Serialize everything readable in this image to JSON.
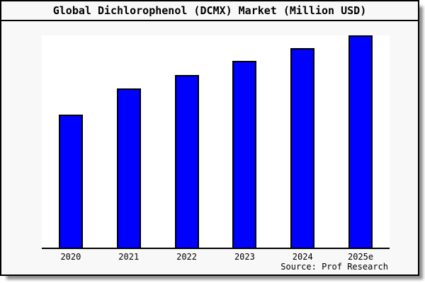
{
  "chart_data": {
    "type": "bar",
    "title": "Global Dichlorophenol (DCMX) Market (Million USD)",
    "categories": [
      "2020",
      "2021",
      "2022",
      "2023",
      "2024",
      "2025e"
    ],
    "values": [
      188,
      225,
      244,
      264,
      282,
      300
    ],
    "value_note": "no y-axis labels or gridlines shown; values are relative bar heights estimated in pixels",
    "xlabel": "",
    "ylabel": "",
    "ylim": [
      0,
      300
    ],
    "grid": false,
    "y_axis_visible": false,
    "x_axis_visible": true,
    "legend": null,
    "source": "Source: Prof Research",
    "colors": {
      "bar_fill": "#0000ff",
      "bar_border": "#000000",
      "axis_line": "#000000",
      "plot_background": "#ffffff",
      "canvas_background": "#f8f8f8",
      "frame_border": "#000000",
      "text": "#000000"
    }
  }
}
